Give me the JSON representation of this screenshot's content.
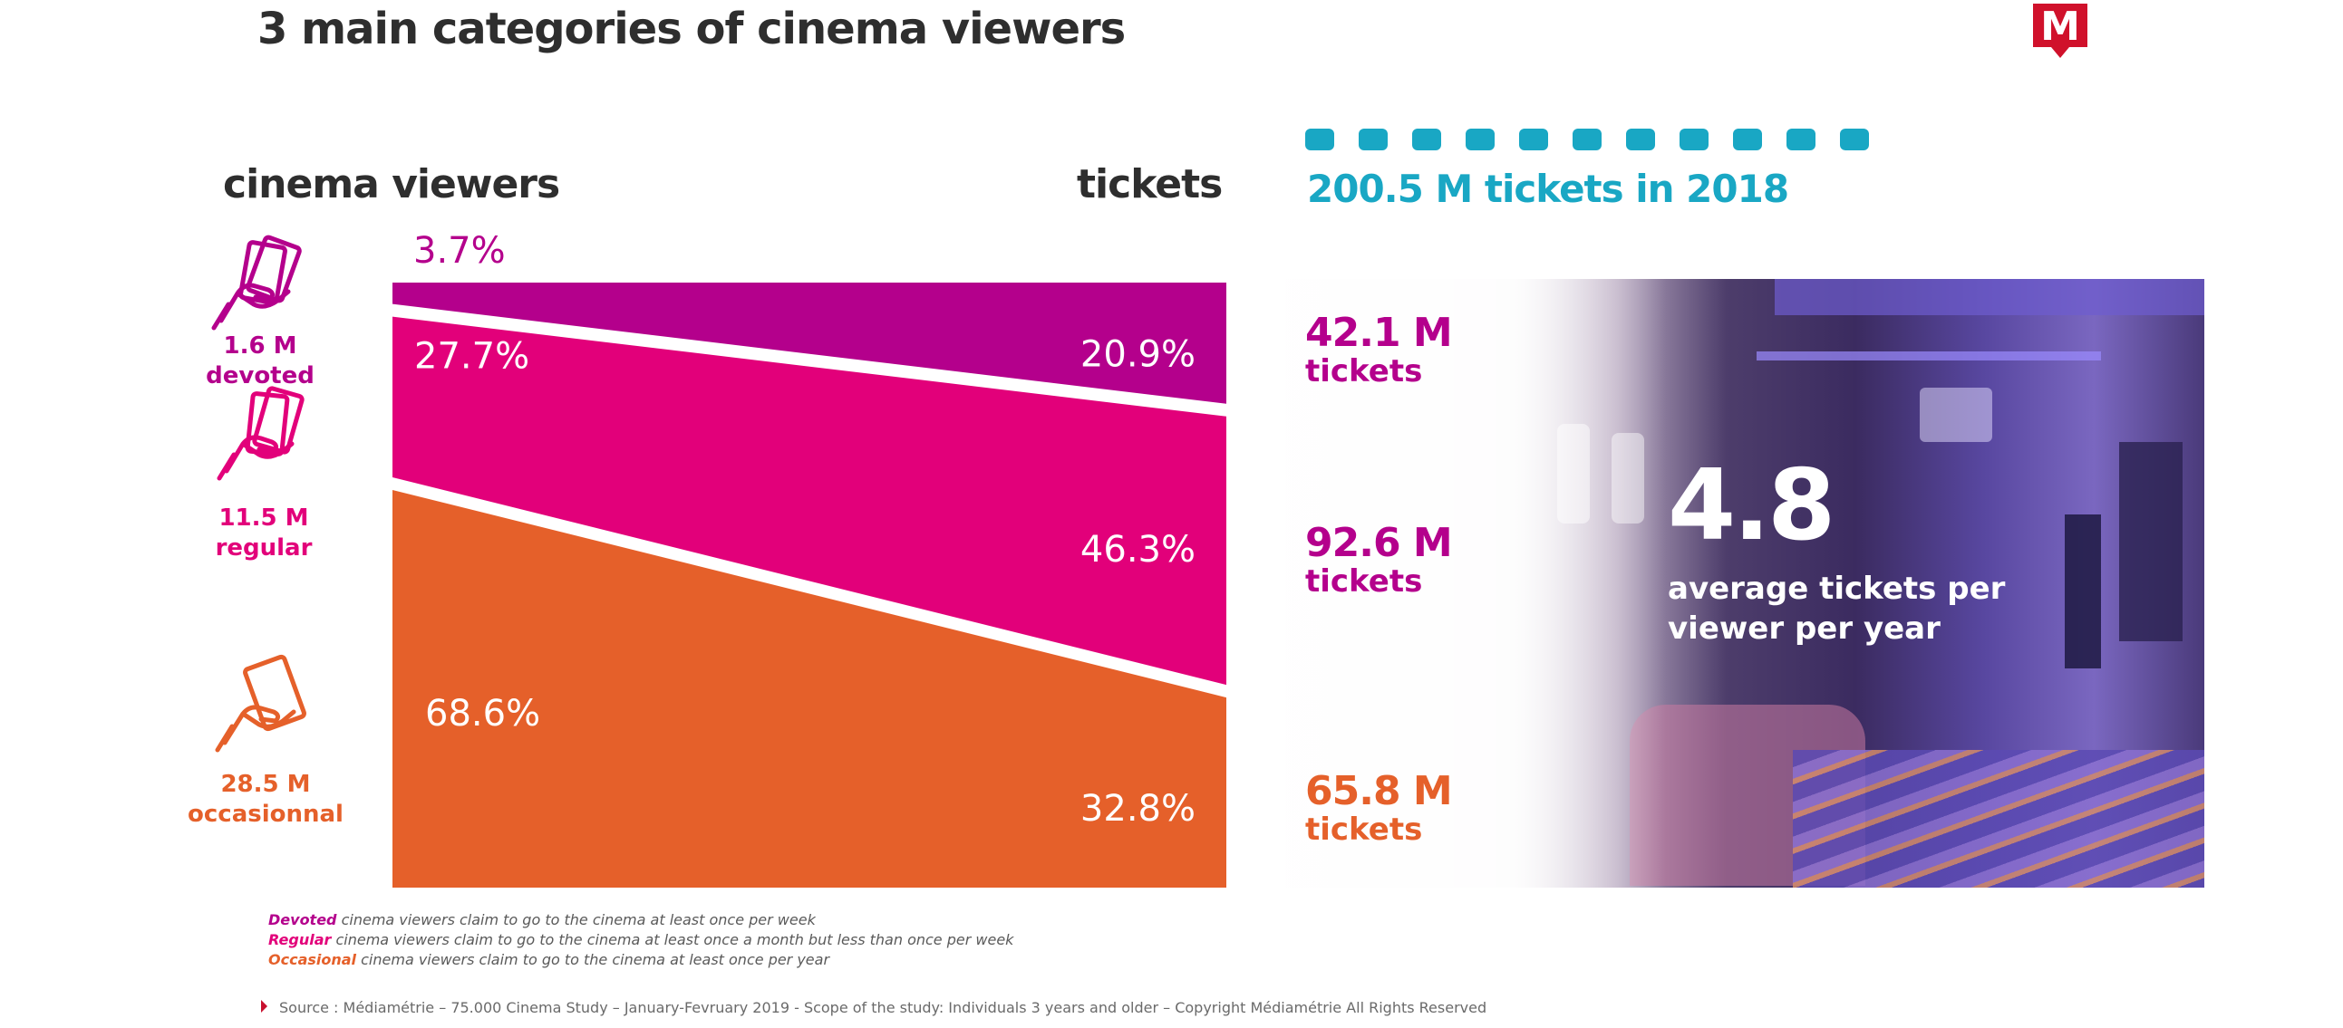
{
  "title": "3 main categories of cinema viewers",
  "headings": {
    "viewers": "cinema viewers",
    "tickets": "tickets"
  },
  "categories": [
    {
      "label_line1": "1.6 M devoted",
      "label_line2": "",
      "color": "#b4008c",
      "icon": "tickets-in-hand-icon"
    },
    {
      "label_line1": "11.5 M",
      "label_line2": "regular",
      "color": "#e2007a",
      "icon": "tickets-in-hand-icon"
    },
    {
      "label_line1": "28.5 M",
      "label_line2": "occasionnal",
      "color": "#e5602a",
      "icon": "ticket-in-hand-icon"
    }
  ],
  "chart_data": {
    "type": "area",
    "x": [
      "cinema viewers",
      "tickets"
    ],
    "series": [
      {
        "name": "devoted",
        "values": [
          3.7,
          20.9
        ],
        "labels": [
          "3.7%",
          "20.9%"
        ],
        "color": "#b4008c"
      },
      {
        "name": "regular",
        "values": [
          27.7,
          46.3
        ],
        "labels": [
          "27.7%",
          "46.3%"
        ],
        "color": "#e2007a"
      },
      {
        "name": "occasionnal",
        "values": [
          68.6,
          32.8
        ],
        "labels": [
          "68.6%",
          "32.8%"
        ],
        "color": "#e5602a"
      }
    ],
    "ylim": [
      0,
      100
    ],
    "grid": false,
    "legend": "left"
  },
  "tickets_panel": {
    "total": "200.5 M tickets in 2018",
    "accent": "#19a7c4",
    "dots": 11,
    "rows": [
      {
        "value": "42.1 M",
        "word": "tickets",
        "color": "#b4008c"
      },
      {
        "value": "92.6 M",
        "word": "tickets",
        "color": "#b4008c"
      },
      {
        "value": "65.8 M",
        "word": "tickets",
        "color": "#e5602a"
      }
    ],
    "average_value": "4.8",
    "average_caption_line1": "average tickets per",
    "average_caption_line2": "viewer per year"
  },
  "footnotes": [
    {
      "term": "Devoted",
      "text": " cinema viewers claim to go to the cinema at least once per week",
      "color": "#b4008c"
    },
    {
      "term": "Regular",
      "text": " cinema viewers claim to go to the cinema at least once a month but less than once per week",
      "color": "#e2007a"
    },
    {
      "term": "Occasional",
      "text": " cinema viewers claim to go to the cinema at least once per year",
      "color": "#e5602a"
    }
  ],
  "source": "Source : Médiamétrie – 75.000 Cinema Study – January-Fevruary 2019 - Scope of the study: Individuals 3 years and older – Copyright Médiamétrie All Rights Reserved",
  "logo_letter": "M"
}
